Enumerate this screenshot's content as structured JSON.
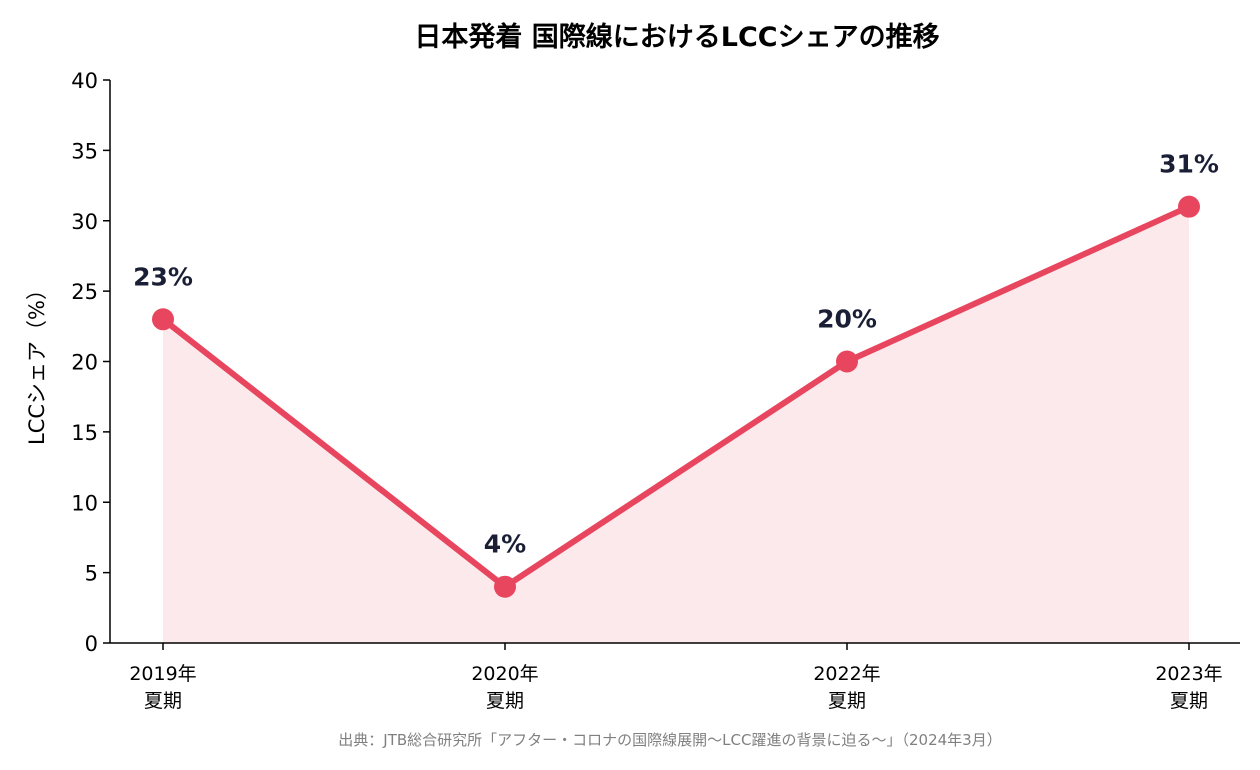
{
  "chart_data": {
    "type": "line",
    "title": "日本発着 国際線におけるLCCシェアの推移",
    "ylabel": "LCCシェア（%）",
    "xlabel": "",
    "categories": [
      [
        "2019年",
        "夏期"
      ],
      [
        "2020年",
        "夏期"
      ],
      [
        "2022年",
        "夏期"
      ],
      [
        "2023年",
        "夏期"
      ]
    ],
    "values": [
      23,
      4,
      20,
      31
    ],
    "data_labels": [
      "23%",
      "4%",
      "20%",
      "31%"
    ],
    "ylim": [
      0,
      40
    ],
    "yticks": [
      0,
      5,
      10,
      15,
      20,
      25,
      30,
      35,
      40
    ],
    "grid": false,
    "area_fill": true,
    "colors": {
      "line": "#e8465f",
      "fill": "#fce9ec",
      "label": "#1a1f36"
    },
    "source": "出典：JTB総合研究所「アフター・コロナの国際線展開〜LCC躍進の背景に迫る〜」（2024年3月）"
  }
}
